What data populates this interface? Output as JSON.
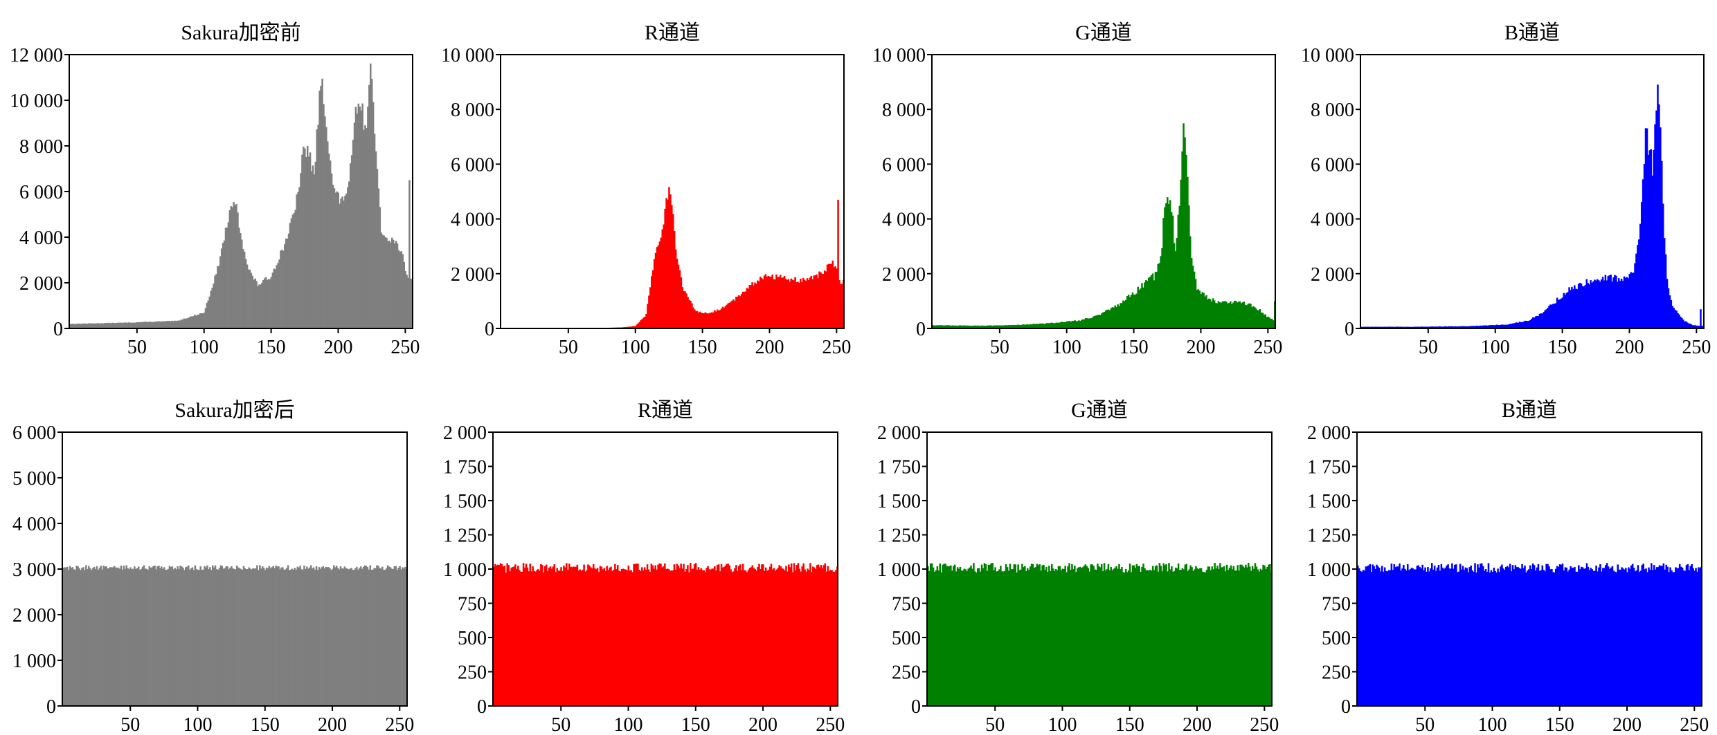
{
  "figure": {
    "row_titles": [
      "Sakura加密前",
      "Sakura加密后"
    ]
  },
  "chart_data": [
    {
      "type": "bar",
      "title": "Sakura加密前",
      "color": "#7f7f7f",
      "xlim": [
        0,
        255
      ],
      "ylim": [
        0,
        12000
      ],
      "xticks": [
        50,
        100,
        150,
        200,
        250
      ],
      "yticks": [
        0,
        2000,
        4000,
        6000,
        8000,
        10000,
        12000
      ],
      "ytick_labels": [
        "0",
        "2 000",
        "4 000",
        "6 000",
        "8 000",
        "10 000",
        "12 000"
      ],
      "profile": [
        [
          0,
          200
        ],
        [
          40,
          250
        ],
        [
          80,
          330
        ],
        [
          100,
          700
        ],
        [
          110,
          2600
        ],
        [
          118,
          4800
        ],
        [
          123,
          5600
        ],
        [
          127,
          4200
        ],
        [
          133,
          2600
        ],
        [
          140,
          1900
        ],
        [
          150,
          2300
        ],
        [
          160,
          3700
        ],
        [
          168,
          5200
        ],
        [
          174,
          7700
        ],
        [
          178,
          7800
        ],
        [
          182,
          6600
        ],
        [
          186,
          10100
        ],
        [
          188,
          10600
        ],
        [
          192,
          8600
        ],
        [
          196,
          6200
        ],
        [
          202,
          5500
        ],
        [
          208,
          6300
        ],
        [
          213,
          9300
        ],
        [
          217,
          9900
        ],
        [
          220,
          8500
        ],
        [
          223,
          10700
        ],
        [
          225,
          11500
        ],
        [
          228,
          7700
        ],
        [
          232,
          4200
        ],
        [
          240,
          3900
        ],
        [
          245,
          3600
        ],
        [
          248,
          3200
        ],
        [
          250,
          2400
        ],
        [
          252,
          2200
        ]
      ],
      "spikes": [
        [
          253,
          6500
        ]
      ],
      "noise": 0.05
    },
    {
      "type": "bar",
      "title": "R通道",
      "color": "#ff0000",
      "xlim": [
        0,
        255
      ],
      "ylim": [
        0,
        10000
      ],
      "xticks": [
        50,
        100,
        150,
        200,
        250
      ],
      "yticks": [
        0,
        2000,
        4000,
        6000,
        8000,
        10000
      ],
      "ytick_labels": [
        "0",
        "2 000",
        "4 000",
        "6 000",
        "8 000",
        "10 000"
      ],
      "profile": [
        [
          0,
          0
        ],
        [
          65,
          5
        ],
        [
          90,
          40
        ],
        [
          100,
          90
        ],
        [
          108,
          500
        ],
        [
          114,
          2600
        ],
        [
          120,
          3700
        ],
        [
          125,
          5100
        ],
        [
          127,
          4700
        ],
        [
          130,
          3000
        ],
        [
          135,
          1500
        ],
        [
          145,
          600
        ],
        [
          155,
          550
        ],
        [
          165,
          750
        ],
        [
          175,
          1100
        ],
        [
          185,
          1550
        ],
        [
          195,
          1900
        ],
        [
          205,
          1900
        ],
        [
          215,
          1800
        ],
        [
          225,
          1750
        ],
        [
          235,
          1900
        ],
        [
          243,
          2200
        ],
        [
          246,
          2400
        ],
        [
          250,
          2200
        ],
        [
          252,
          1700
        ]
      ],
      "spikes": [
        [
          251,
          4700
        ]
      ],
      "noise": 0.06
    },
    {
      "type": "bar",
      "title": "G通道",
      "color": "#008000",
      "xlim": [
        0,
        255
      ],
      "ylim": [
        0,
        10000
      ],
      "xticks": [
        50,
        100,
        150,
        200,
        250
      ],
      "yticks": [
        0,
        2000,
        4000,
        6000,
        8000,
        10000
      ],
      "ytick_labels": [
        "0",
        "2 000",
        "4 000",
        "6 000",
        "8 000",
        "10 000"
      ],
      "profile": [
        [
          0,
          120
        ],
        [
          30,
          100
        ],
        [
          60,
          120
        ],
        [
          90,
          200
        ],
        [
          110,
          300
        ],
        [
          125,
          500
        ],
        [
          140,
          900
        ],
        [
          155,
          1500
        ],
        [
          165,
          1900
        ],
        [
          170,
          2500
        ],
        [
          173,
          4400
        ],
        [
          175,
          5100
        ],
        [
          178,
          4500
        ],
        [
          181,
          2700
        ],
        [
          184,
          4500
        ],
        [
          186,
          6800
        ],
        [
          188,
          7200
        ],
        [
          190,
          5200
        ],
        [
          193,
          2600
        ],
        [
          197,
          1500
        ],
        [
          205,
          1100
        ],
        [
          215,
          950
        ],
        [
          225,
          950
        ],
        [
          235,
          900
        ],
        [
          243,
          700
        ],
        [
          250,
          400
        ],
        [
          254,
          300
        ]
      ],
      "spikes": [
        [
          255,
          1000
        ]
      ],
      "noise": 0.08
    },
    {
      "type": "bar",
      "title": "B通道",
      "color": "#0000ff",
      "xlim": [
        0,
        255
      ],
      "ylim": [
        0,
        10000
      ],
      "xticks": [
        50,
        100,
        150,
        200,
        250
      ],
      "yticks": [
        0,
        2000,
        4000,
        6000,
        8000,
        10000
      ],
      "ytick_labels": [
        "0",
        "2 000",
        "4 000",
        "6 000",
        "8 000",
        "10 000"
      ],
      "profile": [
        [
          0,
          60
        ],
        [
          40,
          60
        ],
        [
          80,
          80
        ],
        [
          110,
          150
        ],
        [
          125,
          300
        ],
        [
          135,
          550
        ],
        [
          145,
          1000
        ],
        [
          155,
          1400
        ],
        [
          165,
          1650
        ],
        [
          175,
          1800
        ],
        [
          185,
          1850
        ],
        [
          195,
          1850
        ],
        [
          203,
          2000
        ],
        [
          207,
          3300
        ],
        [
          210,
          5500
        ],
        [
          212,
          7200
        ],
        [
          214,
          6400
        ],
        [
          217,
          6000
        ],
        [
          219,
          7600
        ],
        [
          221,
          8800
        ],
        [
          223,
          7500
        ],
        [
          225,
          4300
        ],
        [
          228,
          1700
        ],
        [
          232,
          800
        ],
        [
          240,
          300
        ],
        [
          247,
          120
        ],
        [
          252,
          100
        ]
      ],
      "spikes": [
        [
          253,
          700
        ]
      ],
      "noise": 0.08
    },
    {
      "type": "bar",
      "title": "Sakura加密后",
      "color": "#7f7f7f",
      "xlim": [
        0,
        255
      ],
      "ylim": [
        0,
        6000
      ],
      "xticks": [
        50,
        100,
        150,
        200,
        250
      ],
      "yticks": [
        0,
        1000,
        2000,
        3000,
        4000,
        5000,
        6000
      ],
      "ytick_labels": [
        "0",
        "1 000",
        "2 000",
        "3 000",
        "4 000",
        "5 000",
        "6 000"
      ],
      "profile": [
        [
          0,
          3030
        ],
        [
          255,
          3030
        ]
      ],
      "spikes": [],
      "noise": 0.018
    },
    {
      "type": "bar",
      "title": "R通道",
      "color": "#ff0000",
      "xlim": [
        0,
        255
      ],
      "ylim": [
        0,
        2000
      ],
      "xticks": [
        50,
        100,
        150,
        200,
        250
      ],
      "yticks": [
        0,
        250,
        500,
        750,
        1000,
        1250,
        1500,
        1750,
        2000
      ],
      "ytick_labels": [
        "0",
        "250",
        "500",
        "750",
        "1 000",
        "1 250",
        "1 500",
        "1 750",
        "2 000"
      ],
      "profile": [
        [
          0,
          1010
        ],
        [
          255,
          1010
        ]
      ],
      "spikes": [],
      "noise": 0.035
    },
    {
      "type": "bar",
      "title": "G通道",
      "color": "#008000",
      "xlim": [
        0,
        255
      ],
      "ylim": [
        0,
        2000
      ],
      "xticks": [
        50,
        100,
        150,
        200,
        250
      ],
      "yticks": [
        0,
        250,
        500,
        750,
        1000,
        1250,
        1500,
        1750,
        2000
      ],
      "ytick_labels": [
        "0",
        "250",
        "500",
        "750",
        "1 000",
        "1 250",
        "1 500",
        "1 750",
        "2 000"
      ],
      "profile": [
        [
          0,
          1010
        ],
        [
          255,
          1010
        ]
      ],
      "spikes": [],
      "noise": 0.035
    },
    {
      "type": "bar",
      "title": "B通道",
      "color": "#0000ff",
      "xlim": [
        0,
        255
      ],
      "ylim": [
        0,
        2000
      ],
      "xticks": [
        50,
        100,
        150,
        200,
        250
      ],
      "yticks": [
        0,
        250,
        500,
        750,
        1000,
        1250,
        1500,
        1750,
        2000
      ],
      "ytick_labels": [
        "0",
        "250",
        "500",
        "750",
        "1 000",
        "1 250",
        "1 500",
        "1 750",
        "2 000"
      ],
      "profile": [
        [
          0,
          1010
        ],
        [
          255,
          1010
        ]
      ],
      "spikes": [],
      "noise": 0.035
    }
  ]
}
